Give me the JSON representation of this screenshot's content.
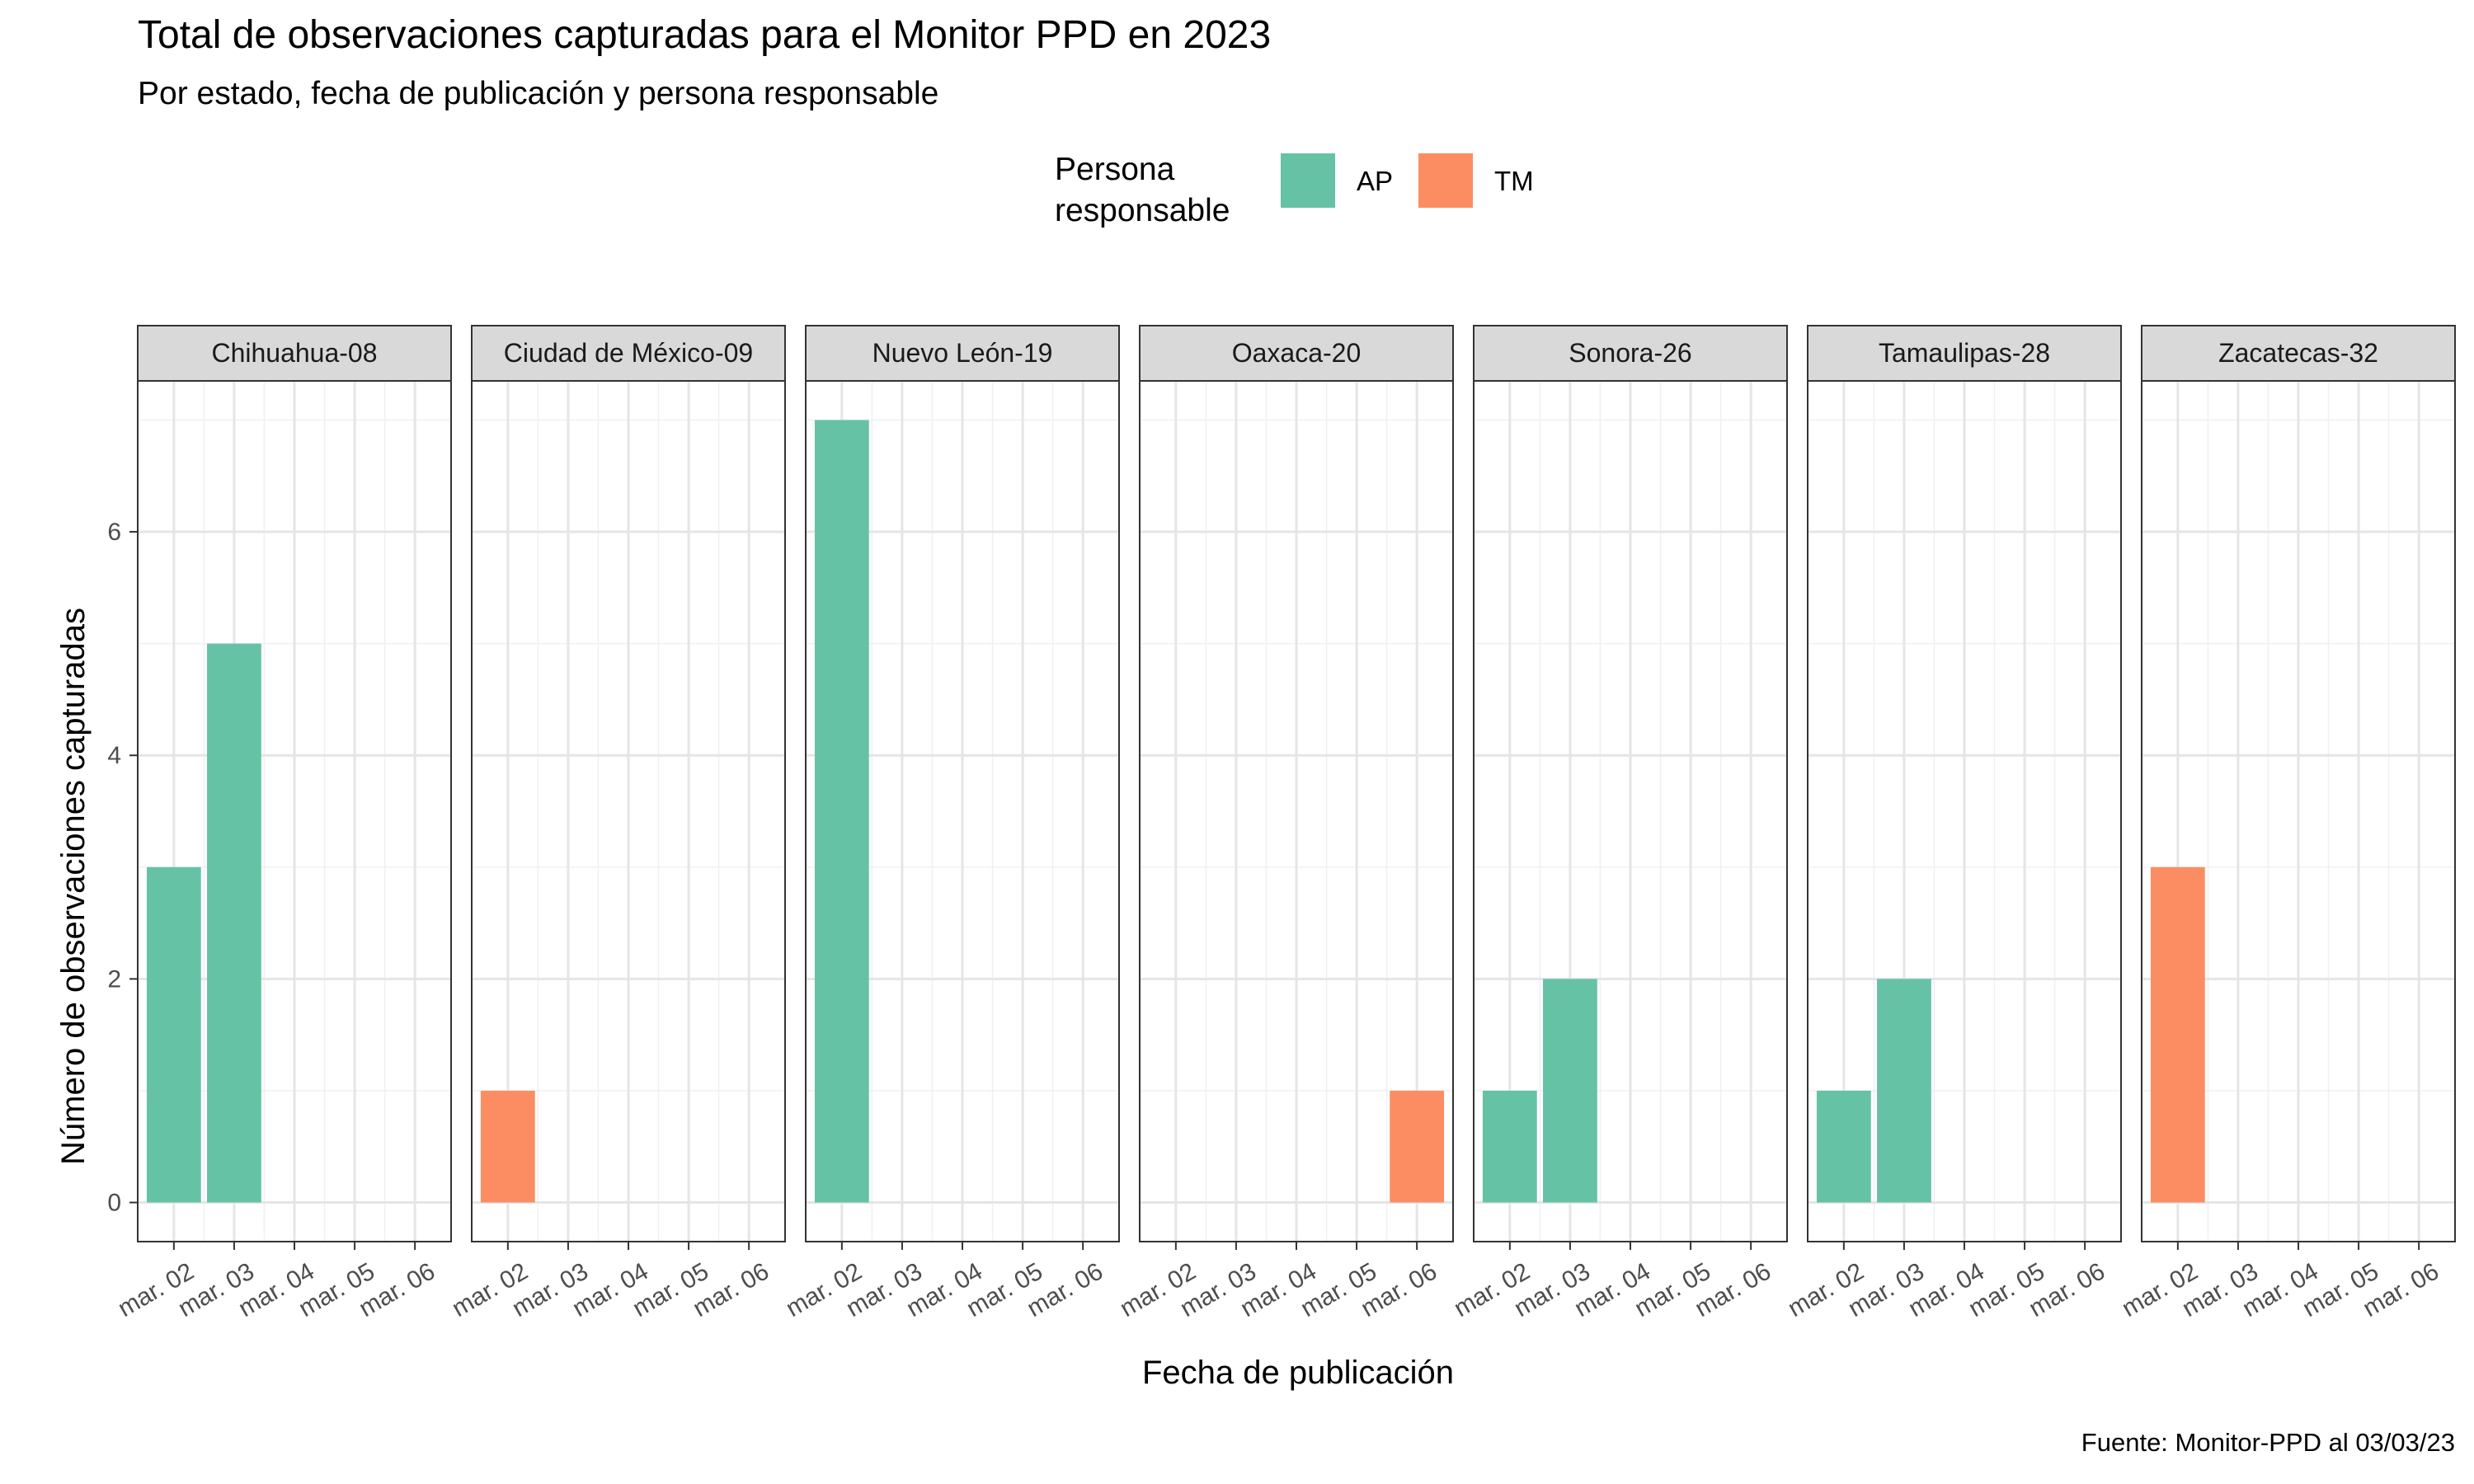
{
  "chart_data": {
    "type": "bar",
    "title": "Total de observaciones capturadas para el Monitor PPD en 2023",
    "subtitle": "Por estado, fecha de publicación y persona responsable",
    "xlabel": "Fecha de publicación",
    "ylabel": "Número de observaciones capturadas",
    "caption": "Fuente: Monitor-PPD al 03/03/23",
    "categories": [
      "mar. 02",
      "mar. 03",
      "mar. 04",
      "mar. 05",
      "mar. 06"
    ],
    "y_ticks": [
      0,
      2,
      4,
      6
    ],
    "ylim": [
      0,
      7.35
    ],
    "grid": true,
    "legend": {
      "title_lines": [
        "Persona",
        "responsable"
      ],
      "placement": "top",
      "entries": [
        {
          "label": "AP",
          "color": "#66C2A5"
        },
        {
          "label": "TM",
          "color": "#FC8D62"
        }
      ]
    },
    "facets": [
      {
        "name": "Chihuahua-08",
        "bars": [
          {
            "category": "mar. 02",
            "value": 3,
            "group": "AP"
          },
          {
            "category": "mar. 03",
            "value": 5,
            "group": "AP"
          }
        ]
      },
      {
        "name": "Ciudad de México-09",
        "bars": [
          {
            "category": "mar. 02",
            "value": 1,
            "group": "TM"
          }
        ]
      },
      {
        "name": "Nuevo León-19",
        "bars": [
          {
            "category": "mar. 02",
            "value": 7,
            "group": "AP"
          }
        ]
      },
      {
        "name": "Oaxaca-20",
        "bars": [
          {
            "category": "mar. 06",
            "value": 1,
            "group": "TM"
          }
        ]
      },
      {
        "name": "Sonora-26",
        "bars": [
          {
            "category": "mar. 02",
            "value": 1,
            "group": "AP"
          },
          {
            "category": "mar. 03",
            "value": 2,
            "group": "AP"
          }
        ]
      },
      {
        "name": "Tamaulipas-28",
        "bars": [
          {
            "category": "mar. 02",
            "value": 1,
            "group": "AP"
          },
          {
            "category": "mar. 03",
            "value": 2,
            "group": "AP"
          }
        ]
      },
      {
        "name": "Zacatecas-32",
        "bars": [
          {
            "category": "mar. 02",
            "value": 3,
            "group": "TM"
          }
        ]
      }
    ]
  }
}
